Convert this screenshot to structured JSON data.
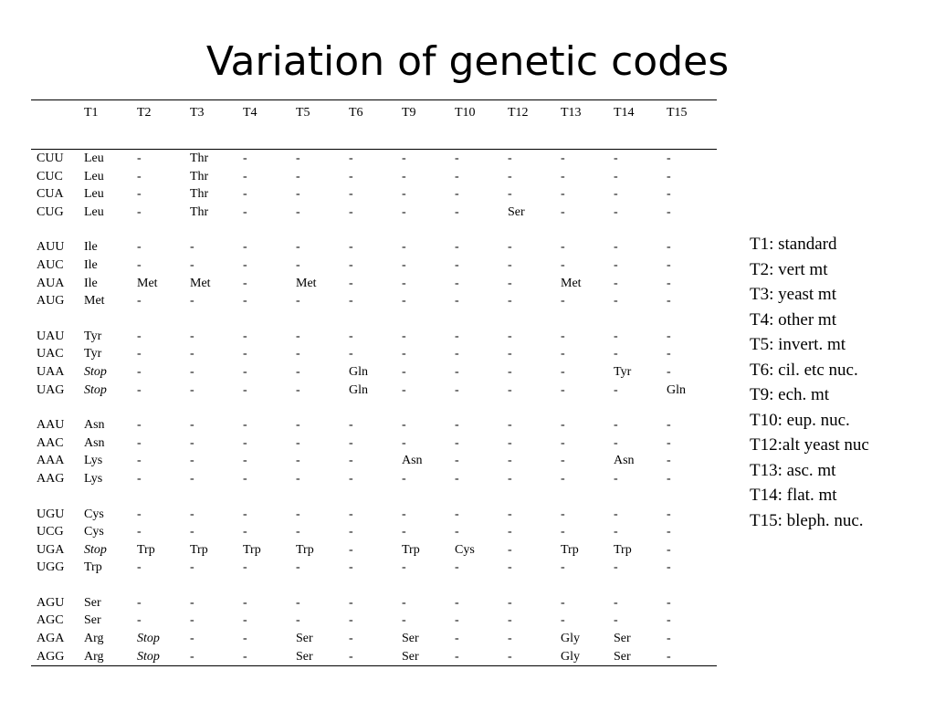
{
  "title": "Variation of genetic codes",
  "table": {
    "headers": [
      "",
      "T1",
      "T2",
      "T3",
      "T4",
      "T5",
      "T6",
      "T9",
      "T10",
      "T12",
      "T13",
      "T14",
      "T15"
    ],
    "groups": [
      [
        [
          "CUU",
          "Leu",
          "-",
          "Thr",
          "-",
          "-",
          "-",
          "-",
          "-",
          "-",
          "-",
          "-",
          "-"
        ],
        [
          "CUC",
          "Leu",
          "-",
          "Thr",
          "-",
          "-",
          "-",
          "-",
          "-",
          "-",
          "-",
          "-",
          "-"
        ],
        [
          "CUA",
          "Leu",
          "-",
          "Thr",
          "-",
          "-",
          "-",
          "-",
          "-",
          "-",
          "-",
          "-",
          "-"
        ],
        [
          "CUG",
          "Leu",
          "-",
          "Thr",
          "-",
          "-",
          "-",
          "-",
          "-",
          "Ser",
          "-",
          "-",
          "-"
        ]
      ],
      [
        [
          "AUU",
          "Ile",
          "-",
          "-",
          "-",
          "-",
          "-",
          "-",
          "-",
          "-",
          "-",
          "-",
          "-"
        ],
        [
          "AUC",
          "Ile",
          "-",
          "-",
          "-",
          "-",
          "-",
          "-",
          "-",
          "-",
          "-",
          "-",
          "-"
        ],
        [
          "AUA",
          "Ile",
          "Met",
          "Met",
          "-",
          "Met",
          "-",
          "-",
          "-",
          "-",
          "Met",
          "-",
          "-"
        ],
        [
          "AUG",
          "Met",
          "-",
          "-",
          "-",
          "-",
          "-",
          "-",
          "-",
          "-",
          "-",
          "-",
          "-"
        ]
      ],
      [
        [
          "UAU",
          "Tyr",
          "-",
          "-",
          "-",
          "-",
          "-",
          "-",
          "-",
          "-",
          "-",
          "-",
          "-"
        ],
        [
          "UAC",
          "Tyr",
          "-",
          "-",
          "-",
          "-",
          "-",
          "-",
          "-",
          "-",
          "-",
          "-",
          "-"
        ],
        [
          "UAA",
          "Stop",
          "-",
          "-",
          "-",
          "-",
          "Gln",
          "-",
          "-",
          "-",
          "-",
          "Tyr",
          "-"
        ],
        [
          "UAG",
          "Stop",
          "-",
          "-",
          "-",
          "-",
          "Gln",
          "-",
          "-",
          "-",
          "-",
          "-",
          "Gln"
        ]
      ],
      [
        [
          "AAU",
          "Asn",
          "-",
          "-",
          "-",
          "-",
          "-",
          "-",
          "-",
          "-",
          "-",
          "-",
          "-"
        ],
        [
          "AAC",
          "Asn",
          "-",
          "-",
          "-",
          "-",
          "-",
          "-",
          "-",
          "-",
          "-",
          "-",
          "-"
        ],
        [
          "AAA",
          "Lys",
          "-",
          "-",
          "-",
          "-",
          "-",
          "Asn",
          "-",
          "-",
          "-",
          "Asn",
          "-"
        ],
        [
          "AAG",
          "Lys",
          "-",
          "-",
          "-",
          "-",
          "-",
          "-",
          "-",
          "-",
          "-",
          "-",
          "-"
        ]
      ],
      [
        [
          "UGU",
          "Cys",
          "-",
          "-",
          "-",
          "-",
          "-",
          "-",
          "-",
          "-",
          "-",
          "-",
          "-"
        ],
        [
          "UCG",
          "Cys",
          "-",
          "-",
          "-",
          "-",
          "-",
          "-",
          "-",
          "-",
          "-",
          "-",
          "-"
        ],
        [
          "UGA",
          "Stop",
          "Trp",
          "Trp",
          "Trp",
          "Trp",
          "-",
          "Trp",
          "Cys",
          "-",
          "Trp",
          "Trp",
          "-"
        ],
        [
          "UGG",
          "Trp",
          "-",
          "-",
          "-",
          "-",
          "-",
          "-",
          "-",
          "-",
          "-",
          "-",
          "-"
        ]
      ],
      [
        [
          "AGU",
          "Ser",
          "-",
          "-",
          "-",
          "-",
          "-",
          "-",
          "-",
          "-",
          "-",
          "-",
          "-"
        ],
        [
          "AGC",
          "Ser",
          "-",
          "-",
          "-",
          "-",
          "-",
          "-",
          "-",
          "-",
          "-",
          "-",
          "-"
        ],
        [
          "AGA",
          "Arg",
          "Stop",
          "-",
          "-",
          "Ser",
          "-",
          "Ser",
          "-",
          "-",
          "Gly",
          "Ser",
          "-"
        ],
        [
          "AGG",
          "Arg",
          "Stop",
          "-",
          "-",
          "Ser",
          "-",
          "Ser",
          "-",
          "-",
          "Gly",
          "Ser",
          "-"
        ]
      ]
    ]
  },
  "legend": [
    "T1: standard",
    "T2: vert mt",
    "T3: yeast mt",
    "T4: other mt",
    "T5: invert. mt",
    "T6: cil. etc nuc.",
    "T9: ech. mt",
    "T10: eup. nuc.",
    "T12:alt yeast nuc",
    "T13: asc. mt",
    "T14: flat. mt",
    "T15: bleph. nuc."
  ]
}
